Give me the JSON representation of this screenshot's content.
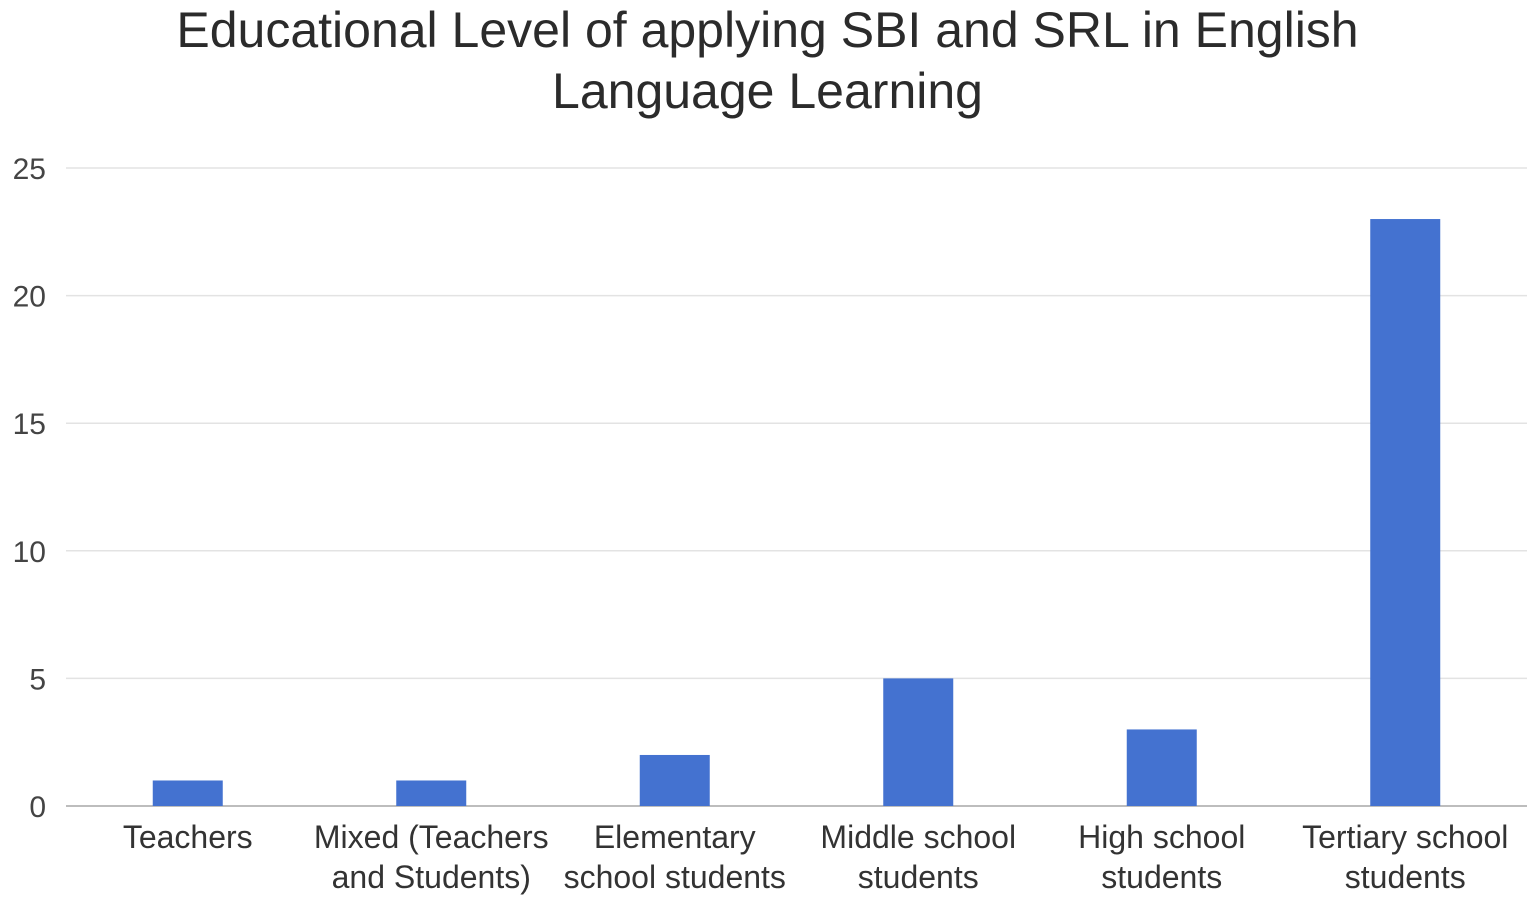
{
  "chart_data": {
    "type": "bar",
    "title_lines": [
      "Educational Level of applying SBI and SRL in English",
      "Language Learning"
    ],
    "categories": [
      [
        "Teachers"
      ],
      [
        "Mixed (Teachers",
        "and Students)"
      ],
      [
        "Elementary",
        "school students"
      ],
      [
        "Middle school",
        "students"
      ],
      [
        "High school",
        "students"
      ],
      [
        "Tertiary school",
        "students"
      ]
    ],
    "values": [
      1,
      1,
      2,
      5,
      3,
      23
    ],
    "ylim": [
      0,
      25
    ],
    "yticks": [
      0,
      5,
      10,
      15,
      20,
      25
    ],
    "bar_color": "#4472d0",
    "grid": true,
    "legend": "none"
  }
}
